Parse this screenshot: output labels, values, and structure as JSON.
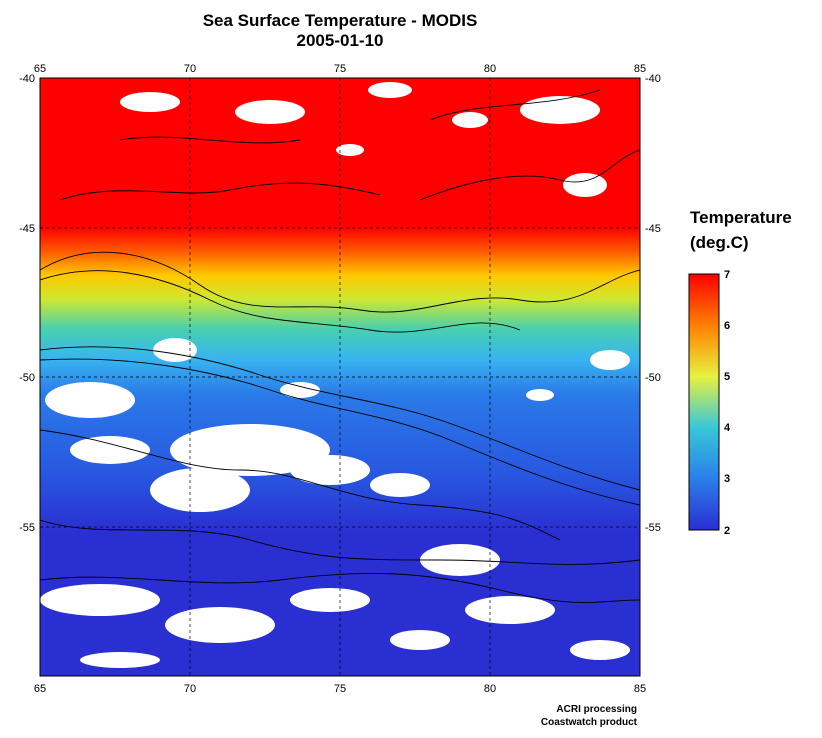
{
  "title": "Sea Surface Temperature - MODIS",
  "date": "2005-01-10",
  "map": {
    "lon_range": [
      65,
      85
    ],
    "lat_range": [
      -40,
      -60
    ],
    "lon_ticks": [
      "65",
      "70",
      "75",
      "80",
      "85"
    ],
    "lat_ticks": [
      "-40",
      "-45",
      "-50",
      "-55"
    ],
    "gridlines": "dashed",
    "contours": "bathymetry"
  },
  "legend": {
    "title_line1": "Temperature",
    "title_line2": "(deg.C)",
    "ticks": [
      "2",
      "3",
      "4",
      "5",
      "6",
      "7"
    ],
    "range": [
      2,
      7
    ],
    "colors": [
      "#2a2fd2",
      "#2a7fe8",
      "#38c8d8",
      "#e8f040",
      "#ff8000",
      "#ff0000"
    ]
  },
  "credits": {
    "line1": "ACRI processing",
    "line2": "Coastwatch product"
  },
  "colors": {
    "warm": "#ff0000",
    "cold": "#2a2fd2",
    "cloud": "#ffffff",
    "contour": "#000000"
  }
}
